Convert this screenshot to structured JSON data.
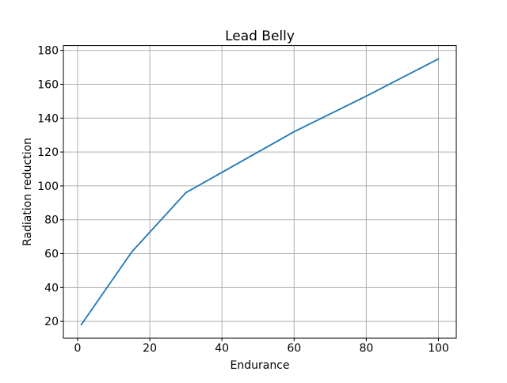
{
  "chart_data": {
    "type": "line",
    "title": "Lead Belly",
    "xlabel": "Endurance",
    "ylabel": "Radiation reduction",
    "x": [
      1,
      15,
      30,
      60,
      80,
      100
    ],
    "y": [
      18,
      61,
      96,
      132,
      153,
      175
    ],
    "xlim": [
      -3.95,
      104.95
    ],
    "ylim": [
      10.15,
      182.85
    ],
    "xticks": [
      0,
      20,
      40,
      60,
      80,
      100
    ],
    "yticks": [
      20,
      40,
      60,
      80,
      100,
      120,
      140,
      160,
      180
    ],
    "grid": true,
    "legend_position": "none",
    "line_color": "#1f77b4",
    "grid_color": "#b0b0b0",
    "spine_color": "#000000",
    "background_color": "#ffffff"
  }
}
